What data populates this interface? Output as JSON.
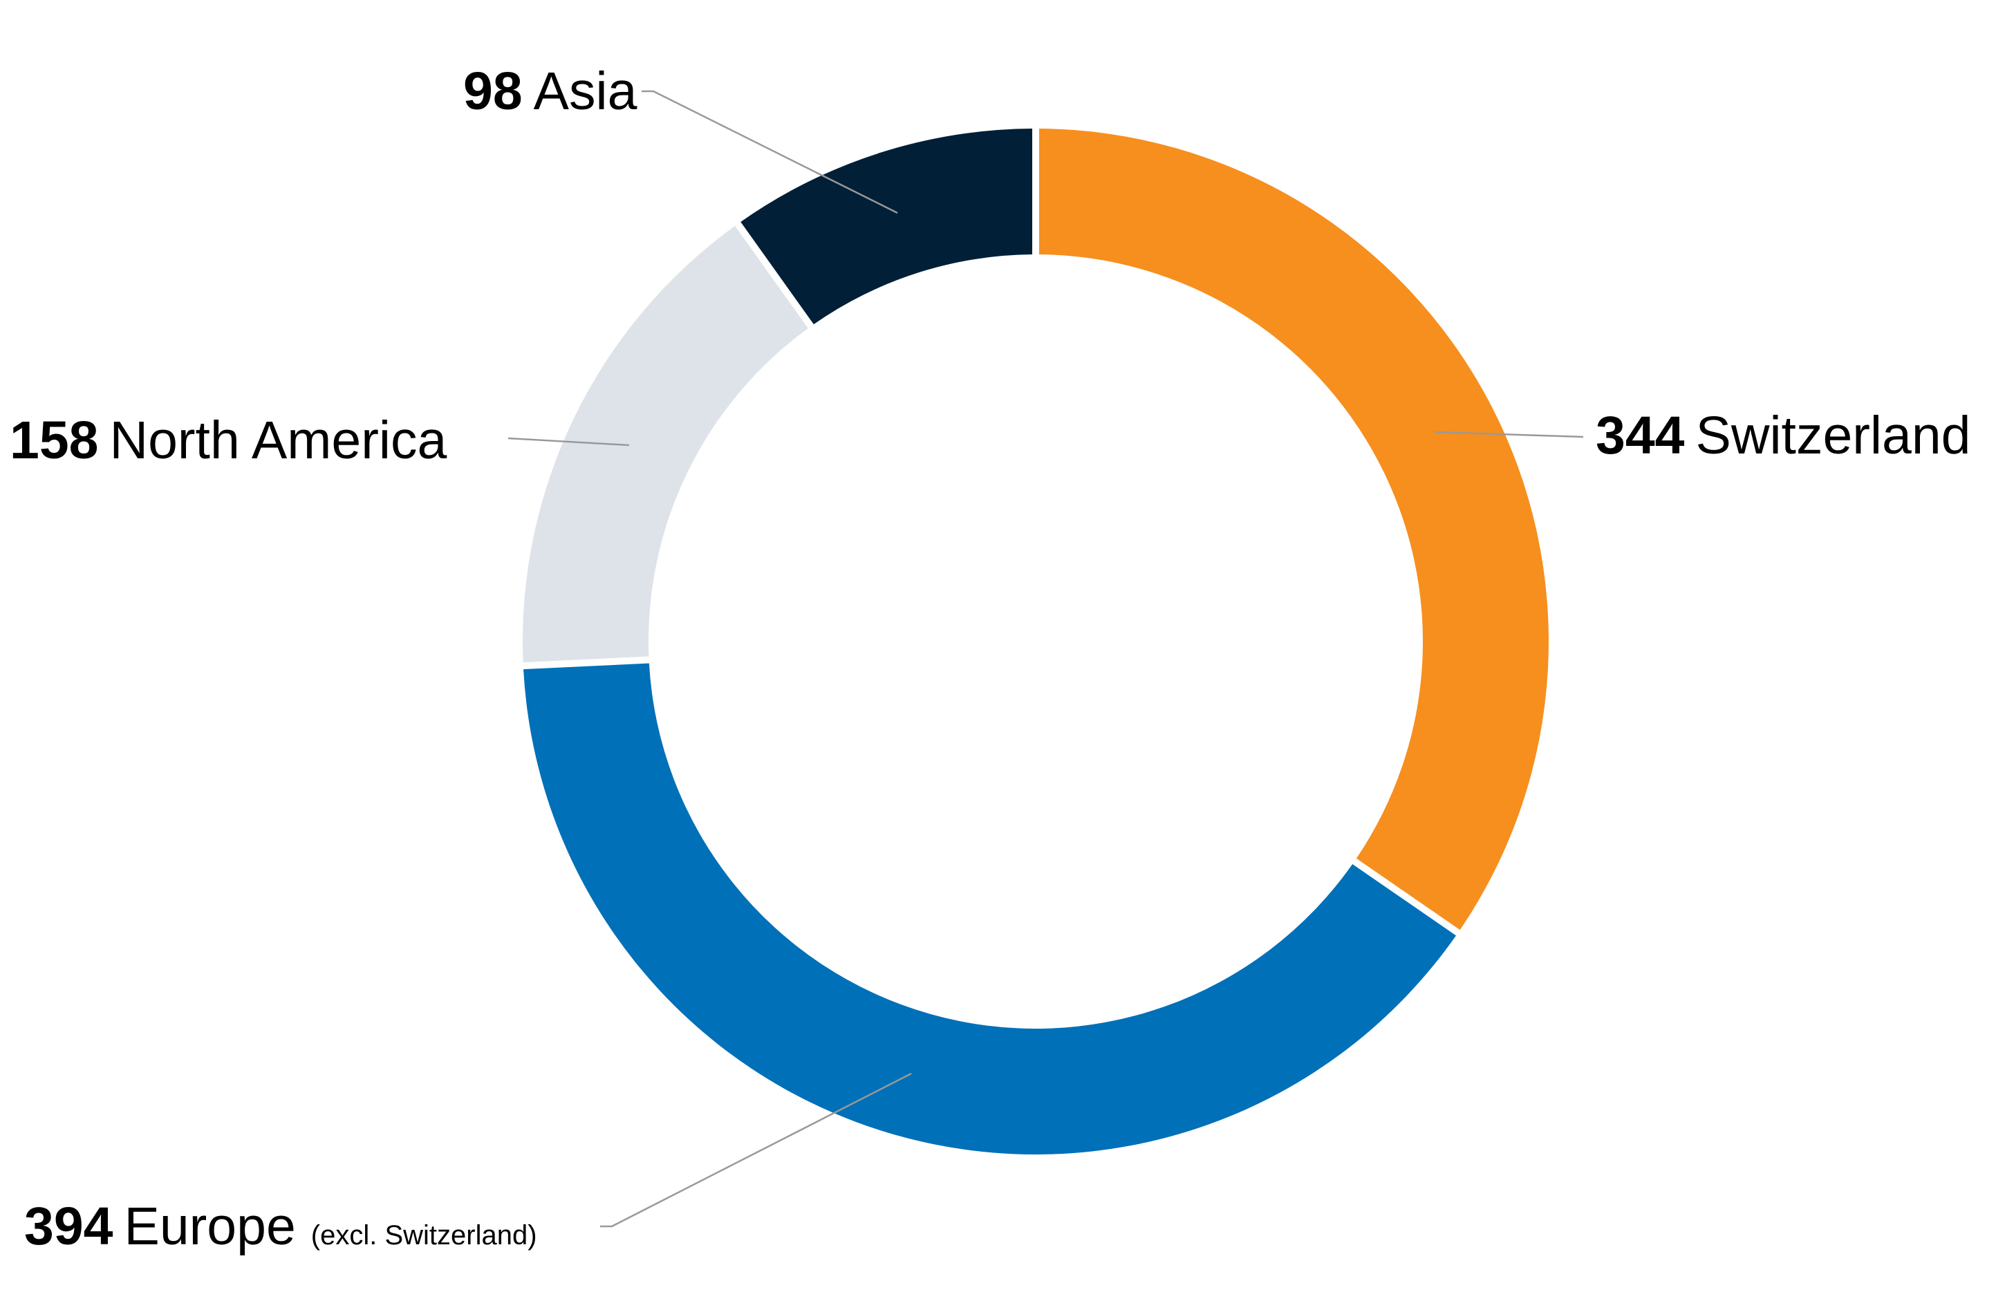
{
  "chart_data": {
    "type": "pie",
    "style": "donut",
    "slices": [
      {
        "value": 344,
        "value_label": "344",
        "label": "Switzerland",
        "note": "",
        "color": "#F68F1E"
      },
      {
        "value": 394,
        "value_label": "394",
        "label": "Europe",
        "note": "(excl. Switzerland)",
        "color": "#0070B8"
      },
      {
        "value": 158,
        "value_label": "158",
        "label": "North America",
        "note": "",
        "color": "#DEE3EA"
      },
      {
        "value": 98,
        "value_label": "98",
        "label": "Asia",
        "note": "",
        "color": "#011F37"
      }
    ],
    "leader_line_color": "#999999",
    "label_color": "#000000"
  }
}
